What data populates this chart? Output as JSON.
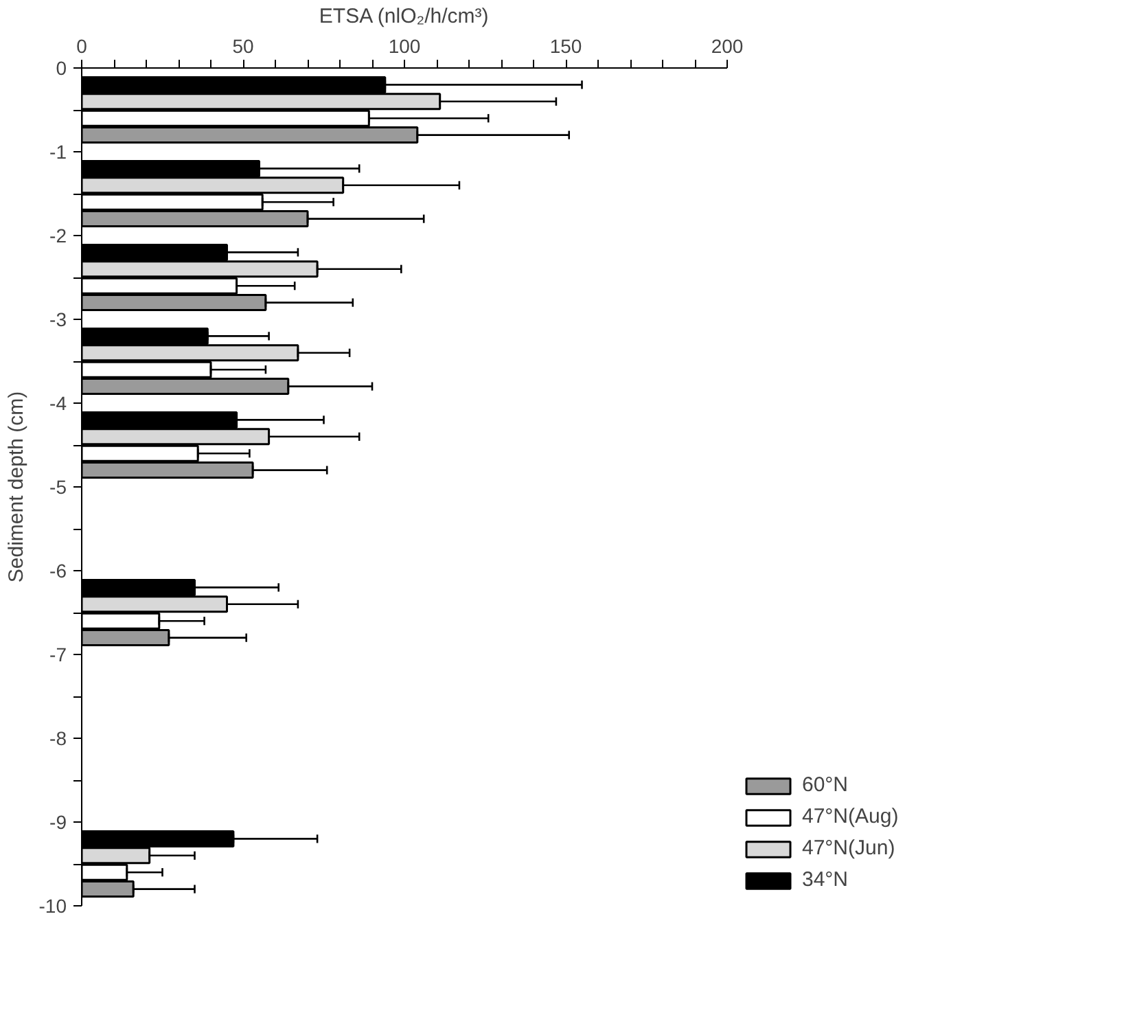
{
  "chart_data": {
    "type": "bar",
    "orientation": "horizontal",
    "xlabel": "ETSA (nlO₂/h/cm³)",
    "ylabel": "Sediment depth (cm)",
    "series": [
      {
        "name": "60°N",
        "color": "#9a9a9a",
        "x": [
          -0.8,
          -1.8,
          -2.8,
          -3.8,
          -4.8,
          -6.8,
          -9.8
        ],
        "values": [
          104,
          70,
          57,
          64,
          53,
          27,
          16
        ],
        "errors": [
          [
            104,
            151
          ],
          [
            70,
            106
          ],
          [
            57,
            84
          ],
          [
            64,
            90
          ],
          [
            53,
            76
          ],
          [
            27,
            51
          ],
          [
            16,
            35
          ]
        ]
      },
      {
        "name": "47°N(Aug)",
        "color": "#ffffff",
        "x": [
          -0.6,
          -1.6,
          -2.6,
          -3.6,
          -4.6,
          -6.6,
          -9.6
        ],
        "values": [
          89,
          56,
          48,
          40,
          36,
          24,
          14
        ],
        "errors": [
          [
            89,
            126
          ],
          [
            56,
            78
          ],
          [
            48,
            66
          ],
          [
            40,
            57
          ],
          [
            36,
            52
          ],
          [
            24,
            38
          ],
          [
            14,
            25
          ]
        ]
      },
      {
        "name": "47°N(Jun)",
        "color": "#d8d8d8",
        "x": [
          -0.4,
          -1.4,
          -2.4,
          -3.4,
          -4.4,
          -6.4,
          -9.4
        ],
        "values": [
          111,
          81,
          73,
          67,
          58,
          45,
          21
        ],
        "errors": [
          [
            111,
            147
          ],
          [
            81,
            117
          ],
          [
            73,
            99
          ],
          [
            67,
            83
          ],
          [
            58,
            86
          ],
          [
            45,
            67
          ],
          [
            21,
            35
          ]
        ]
      },
      {
        "name": "34°N",
        "color": "#000000",
        "x": [
          -0.2,
          -1.2,
          -2.2,
          -3.2,
          -4.2,
          -6.2,
          -9.2
        ],
        "values": [
          94,
          55,
          45,
          39,
          48,
          35,
          47
        ],
        "errors": [
          [
            94,
            155
          ],
          [
            55,
            86
          ],
          [
            45,
            67
          ],
          [
            39,
            58
          ],
          [
            48,
            75
          ],
          [
            35,
            61
          ],
          [
            47,
            73
          ]
        ]
      }
    ],
    "xlim": [
      0,
      200
    ],
    "xticks": [
      0,
      {
        "value": 10,
        "label": null
      },
      {
        "value": 20,
        "label": null
      },
      {
        "value": 30,
        "label": null
      },
      {
        "value": 40,
        "label": null
      },
      50,
      {
        "value": 60,
        "label": null
      },
      {
        "value": 70,
        "label": null
      },
      {
        "value": 80,
        "label": null
      },
      {
        "value": 90,
        "label": null
      },
      100,
      {
        "value": 110,
        "label": null
      },
      {
        "value": 120,
        "label": null
      },
      {
        "value": 130,
        "label": null
      },
      {
        "value": 140,
        "label": null
      },
      150,
      {
        "value": 160,
        "label": null
      },
      {
        "value": 170,
        "label": null
      },
      {
        "value": 180,
        "label": null
      },
      {
        "value": 190,
        "label": null
      },
      200
    ],
    "ylim": [
      -10,
      0
    ],
    "yticks": [
      0,
      {
        "value": -0.5,
        "label": null
      },
      -1,
      {
        "value": -1.5,
        "label": null
      },
      -2,
      {
        "value": -2.5,
        "label": null
      },
      -3,
      {
        "value": -3.5,
        "label": null
      },
      -4,
      {
        "value": -4.5,
        "label": null
      },
      -5,
      {
        "value": -5.5,
        "label": null
      },
      -6,
      {
        "value": -6.5,
        "label": null
      },
      -7,
      {
        "value": -7.5,
        "label": null
      },
      -8,
      {
        "value": -8.5,
        "label": null
      },
      -9,
      {
        "value": -9.5,
        "label": null
      },
      -10
    ],
    "grid": false,
    "legend": "bottom right"
  }
}
